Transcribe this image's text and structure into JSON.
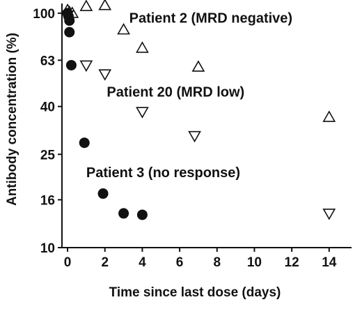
{
  "chart_data": {
    "type": "scatter",
    "title": "",
    "xlabel": "Time since last dose (days)",
    "ylabel": "Antibody concentration (%)",
    "xlim": [
      -0.3,
      15.2
    ],
    "ylim": [
      10,
      110
    ],
    "yscale": "log",
    "xticks": [
      0,
      2,
      4,
      6,
      8,
      10,
      12,
      14
    ],
    "yticks": [
      10,
      16,
      25,
      40,
      63,
      100
    ],
    "grid": false,
    "series": [
      {
        "name": "Patient 2 (MRD negative)",
        "marker": "triangle-up",
        "points": [
          {
            "x": 0.0,
            "y": 103
          },
          {
            "x": 0.1,
            "y": 101
          },
          {
            "x": 0.25,
            "y": 100
          },
          {
            "x": 1.0,
            "y": 107
          },
          {
            "x": 2.0,
            "y": 108
          },
          {
            "x": 3.0,
            "y": 85
          },
          {
            "x": 4.0,
            "y": 71
          },
          {
            "x": 7.0,
            "y": 59
          },
          {
            "x": 14.0,
            "y": 36
          }
        ]
      },
      {
        "name": "Patient 20 (MRD low)",
        "marker": "triangle-down",
        "points": [
          {
            "x": 0.0,
            "y": 98
          },
          {
            "x": 1.0,
            "y": 60
          },
          {
            "x": 2.0,
            "y": 55
          },
          {
            "x": 4.0,
            "y": 38
          },
          {
            "x": 6.8,
            "y": 30
          },
          {
            "x": 14.0,
            "y": 14
          }
        ]
      },
      {
        "name": "Patient 3 (no response)",
        "marker": "circle",
        "points": [
          {
            "x": 0.0,
            "y": 100
          },
          {
            "x": 0.05,
            "y": 97
          },
          {
            "x": 0.1,
            "y": 93
          },
          {
            "x": 0.1,
            "y": 83
          },
          {
            "x": 0.2,
            "y": 60
          },
          {
            "x": 0.9,
            "y": 28
          },
          {
            "x": 1.9,
            "y": 17
          },
          {
            "x": 3.0,
            "y": 14
          },
          {
            "x": 4.0,
            "y": 13.8
          }
        ]
      }
    ],
    "annotations": [
      {
        "text": "Patient 2 (MRD negative)",
        "x": 3.3,
        "y": 91
      },
      {
        "text": "Patient 20 (MRD low)",
        "x": 2.1,
        "y": 44
      },
      {
        "text": "Patient 3 (no response)",
        "x": 1.0,
        "y": 20
      }
    ]
  }
}
